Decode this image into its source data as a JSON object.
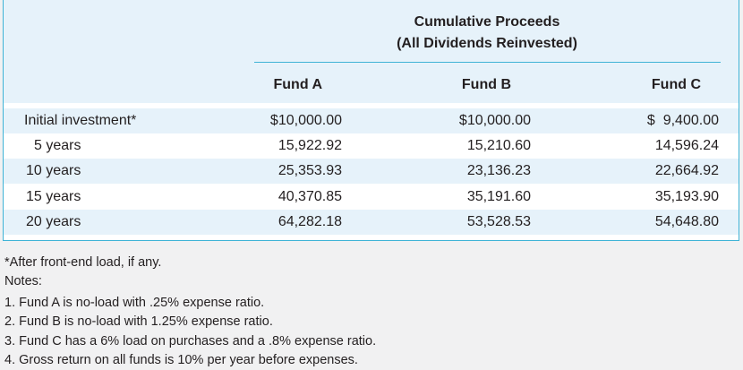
{
  "table": {
    "super_header_line1": "Cumulative Proceeds",
    "super_header_line2": "(All Dividends Reinvested)",
    "columns": [
      "Fund A",
      "Fund B",
      "Fund C"
    ],
    "rows": [
      {
        "label": "Initial investment*",
        "values": [
          "$10,000.00",
          "$10,000.00",
          "$  9,400.00"
        ]
      },
      {
        "label": "5 years",
        "values": [
          "15,922.92",
          "15,210.60",
          "14,596.24"
        ]
      },
      {
        "label": "10 years",
        "values": [
          "25,353.93",
          "23,136.23",
          "22,664.92"
        ]
      },
      {
        "label": "15 years",
        "values": [
          "40,370.85",
          "35,191.60",
          "35,193.90"
        ]
      },
      {
        "label": "20 years",
        "values": [
          "64,282.18",
          "53,528.53",
          "54,648.80"
        ]
      }
    ]
  },
  "footnote": "*After front-end load, if any.",
  "notes_heading": "Notes:",
  "notes": [
    "1. Fund A is no-load with .25% expense ratio.",
    "2. Fund B is no-load with 1.25% expense ratio.",
    "3. Fund C has a 6% load on purchases and a .8% expense ratio.",
    "4. Gross return on all funds is 10% per year before expenses."
  ],
  "colors": {
    "accent_rule": "#3fb3d6",
    "shade": "#e6f2fa",
    "background": "#f1f1f2"
  }
}
